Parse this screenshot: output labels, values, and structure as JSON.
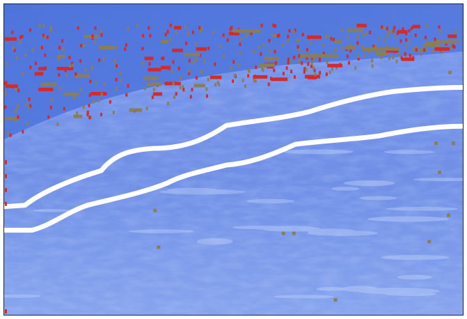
{
  "image": {
    "kind": "ultrasound-style scan with annotation overlay",
    "palette": {
      "background_light": "#8aa8f0",
      "background_mid": "#6f8fe6",
      "upper_band": "#4d74dc",
      "boundary_line": "#ffffff",
      "marker_red": "#d42a2a",
      "marker_olive": "#8a7e57",
      "frame_border": "#222222"
    },
    "boundary_lines": 2,
    "marker_colors": [
      "red",
      "olive"
    ]
  }
}
